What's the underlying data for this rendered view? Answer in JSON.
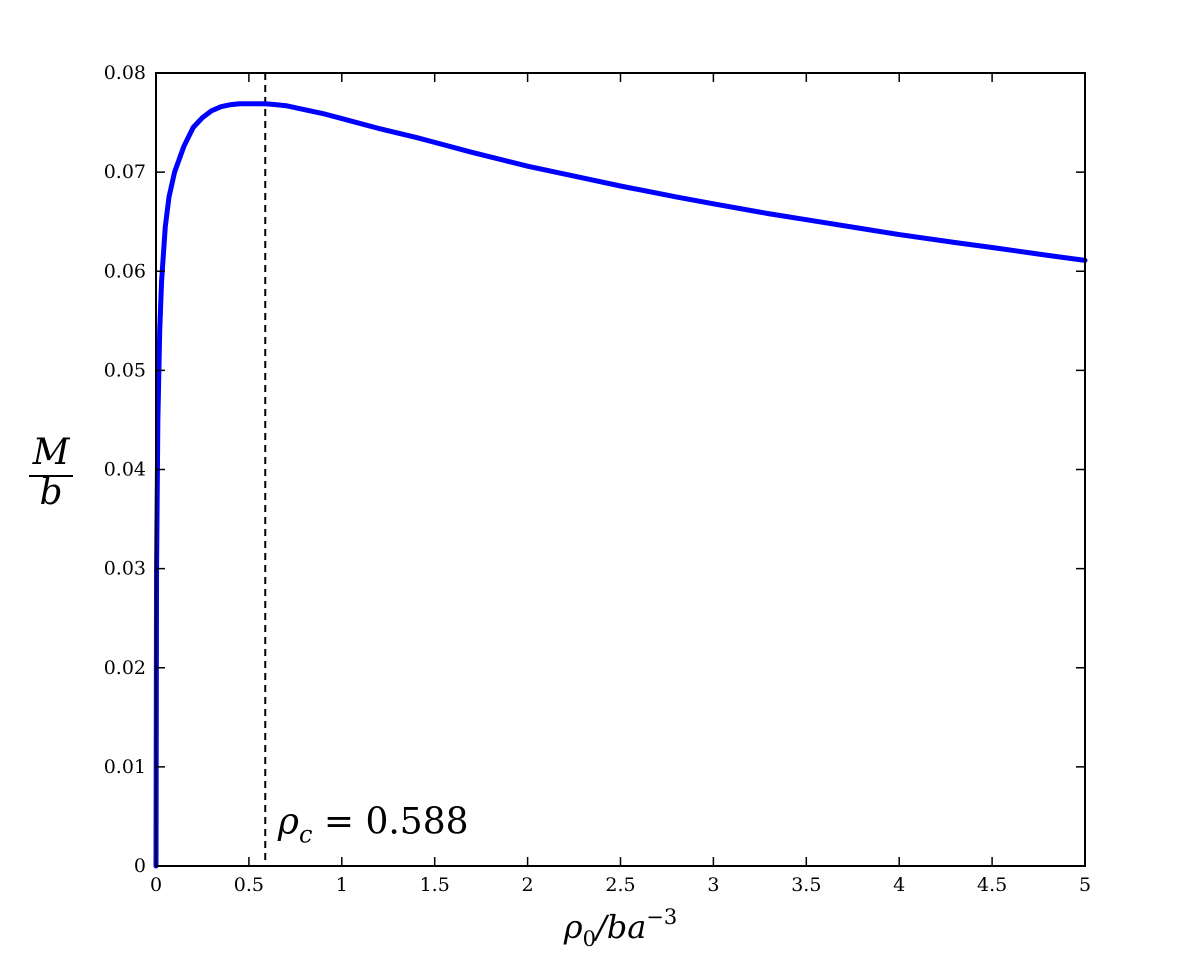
{
  "chart_data": {
    "type": "line",
    "title": "",
    "xlabel": {
      "base": "ρ",
      "sub": "0",
      "rest": "/ba",
      "sup": "−3"
    },
    "ylabel": {
      "numerator": "M",
      "denominator": "b"
    },
    "xlim": [
      0,
      5
    ],
    "ylim": [
      0,
      0.08
    ],
    "xticks": [
      0,
      0.5,
      1,
      1.5,
      2,
      2.5,
      3,
      3.5,
      4,
      4.5,
      5
    ],
    "xtick_labels": [
      "0",
      "0.5",
      "1",
      "1.5",
      "2",
      "2.5",
      "3",
      "3.5",
      "4",
      "4.5",
      "5"
    ],
    "yticks": [
      0,
      0.01,
      0.02,
      0.03,
      0.04,
      0.05,
      0.06,
      0.07,
      0.08
    ],
    "ytick_labels": [
      "0",
      "0.01",
      "0.02",
      "0.03",
      "0.04",
      "0.05",
      "0.06",
      "0.07",
      "0.08"
    ],
    "grid": false,
    "series": [
      {
        "color": "#0000ff",
        "x": [
          0,
          0.003,
          0.01,
          0.02,
          0.03,
          0.05,
          0.07,
          0.1,
          0.15,
          0.2,
          0.25,
          0.3,
          0.35,
          0.4,
          0.45,
          0.5,
          0.55,
          0.588,
          0.65,
          0.7,
          0.8,
          0.9,
          1.0,
          1.2,
          1.4,
          1.5,
          1.7,
          2.0,
          2.3,
          2.5,
          2.8,
          3.0,
          3.3,
          3.5,
          3.8,
          4.0,
          4.3,
          4.5,
          4.8,
          5.0
        ],
        "y": [
          0,
          0.03,
          0.045,
          0.054,
          0.059,
          0.0645,
          0.0675,
          0.07,
          0.0726,
          0.0745,
          0.0755,
          0.0762,
          0.0766,
          0.0768,
          0.0769,
          0.0769,
          0.0769,
          0.0769,
          0.0768,
          0.0767,
          0.0763,
          0.0759,
          0.0754,
          0.0744,
          0.0735,
          0.073,
          0.072,
          0.0706,
          0.0694,
          0.0686,
          0.0675,
          0.0668,
          0.0658,
          0.0652,
          0.0643,
          0.0637,
          0.0629,
          0.0624,
          0.0616,
          0.0611
        ]
      }
    ],
    "vline": {
      "x": 0.588,
      "style": "dashed",
      "color": "#000000"
    },
    "annotation": {
      "base": "ρ",
      "sub": "c",
      "rest": " = 0.588",
      "x": 0.72,
      "y": 0.0045
    }
  }
}
